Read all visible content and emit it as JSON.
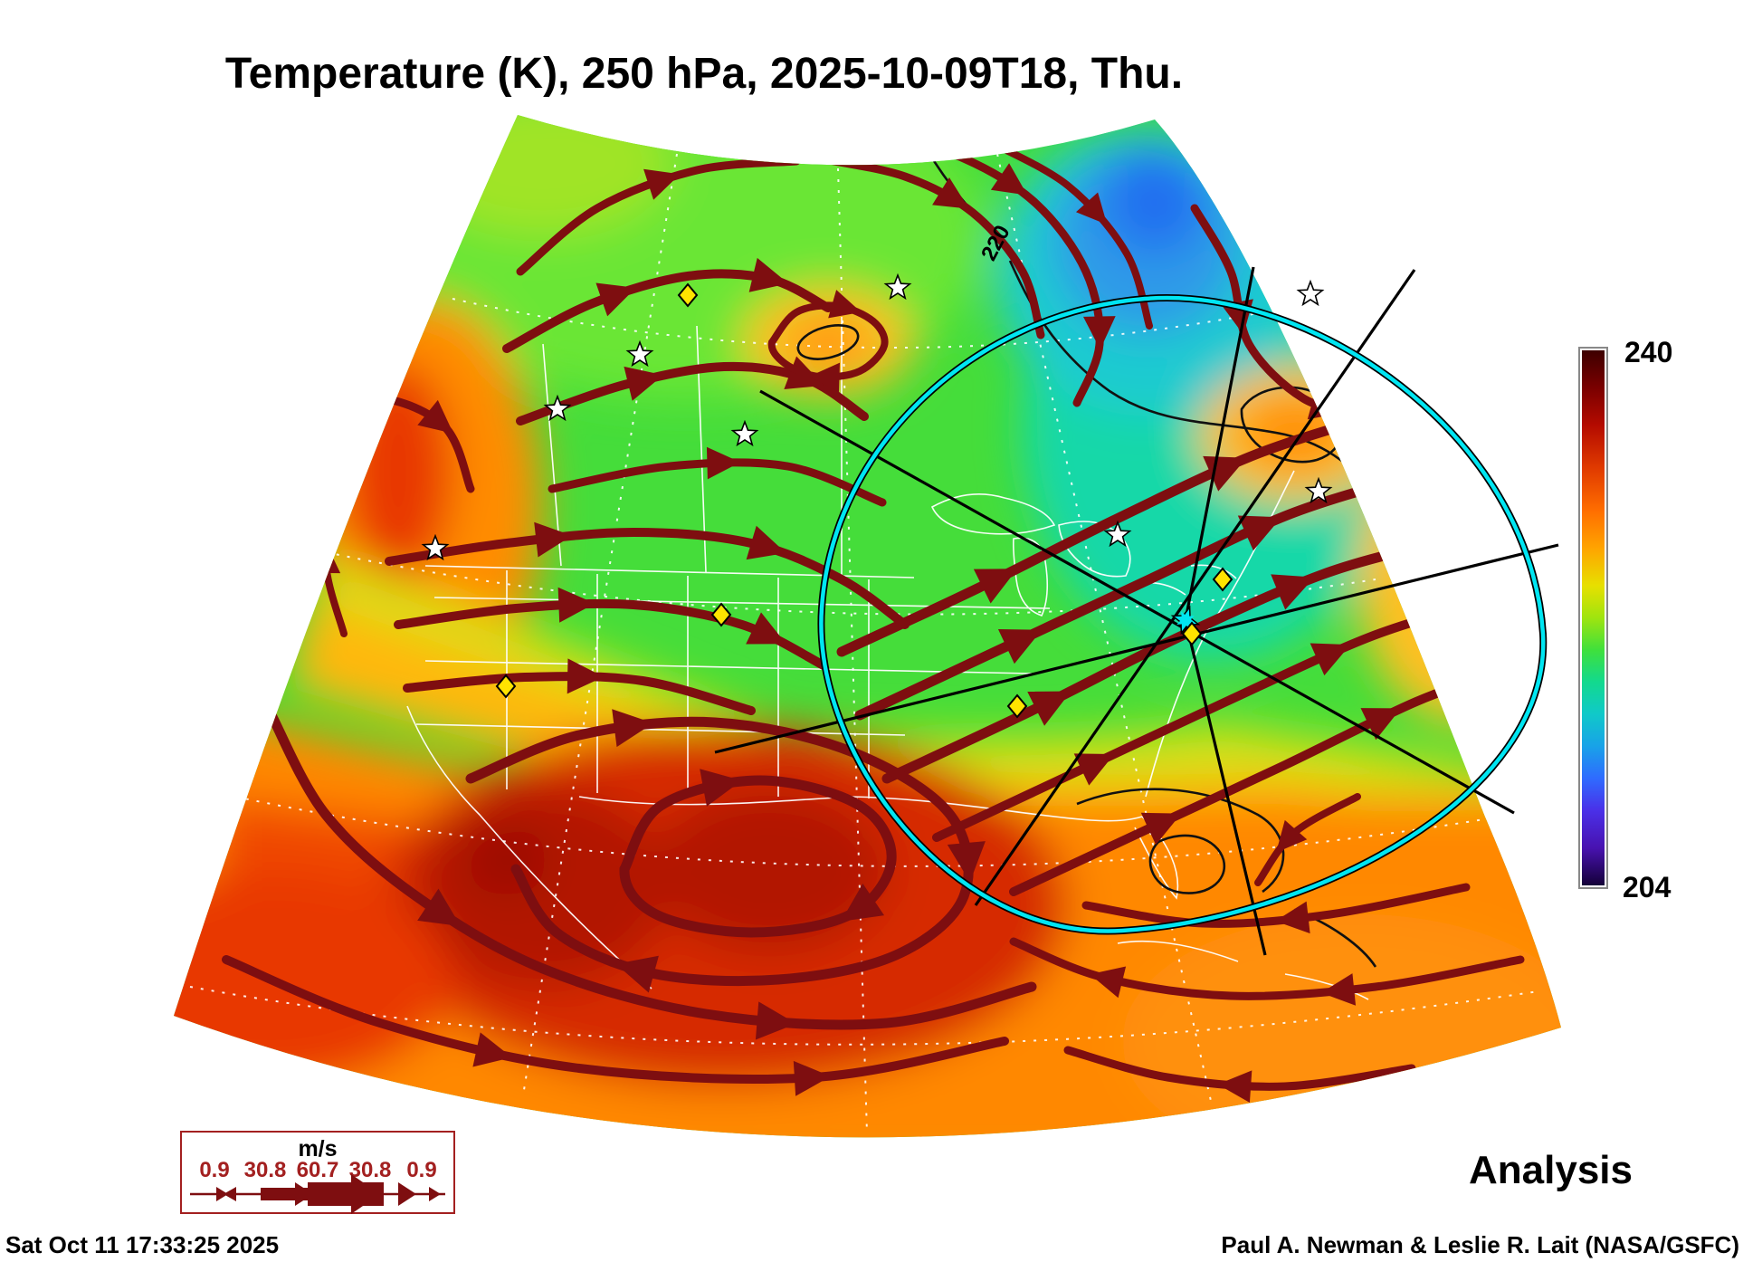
{
  "title": "Temperature (K), 250 hPa, 2025-10-09T18, Thu.",
  "colorbar": {
    "label_max": "240",
    "label_min": "204",
    "value_max": 240,
    "value_min": 204,
    "quantity": "Temperature (K)"
  },
  "contour_label": "220",
  "wind_legend": {
    "unit": "m/s",
    "values": [
      "0.9",
      "30.8",
      "60.7",
      "30.8",
      "0.9"
    ]
  },
  "mode_label": "Analysis",
  "footer": {
    "generated": "Sat Oct 11 17:33:25 2025",
    "credit": "Paul A. Newman & Leslie R. Lait (NASA/GSFC)"
  },
  "colors": {
    "streamline": "#7e0e10",
    "legend_accent": "#a32020",
    "range_ring": "#00e6f2",
    "marker_diamond": "#ffe400",
    "marker_star": "#ffffff"
  }
}
